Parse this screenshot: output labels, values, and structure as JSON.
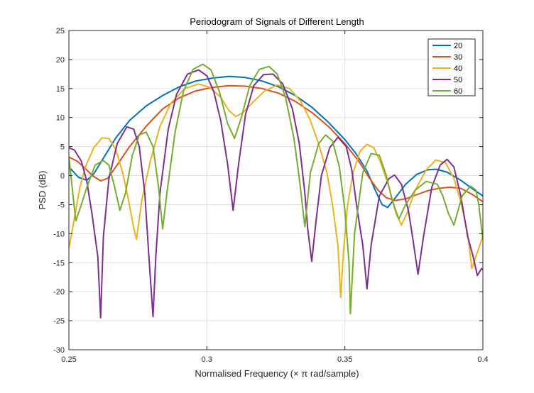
{
  "chart_data": {
    "type": "line",
    "title": "Periodogram of Signals of Different Length",
    "xlabel": "Normalised Frequency (× π rad/sample)",
    "ylabel": "PSD (dB)",
    "xlim": [
      0.25,
      0.4
    ],
    "ylim": [
      -30,
      25
    ],
    "xticks": [
      0.25,
      0.3,
      0.35,
      0.4
    ],
    "xtick_labels": [
      "0.25",
      "0.3",
      "0.35",
      "0.4"
    ],
    "yticks": [
      -30,
      -25,
      -20,
      -15,
      -10,
      -5,
      0,
      5,
      10,
      15,
      20,
      25
    ],
    "ytick_labels": [
      "-30",
      "-25",
      "-20",
      "-15",
      "-10",
      "-5",
      "0",
      "5",
      "10",
      "15",
      "20",
      "25"
    ],
    "grid": true,
    "legend_position": "top-right",
    "series": [
      {
        "name": "20",
        "color": "#0072BD",
        "points": [
          [
            0.25,
            1.5
          ],
          [
            0.2535,
            -0.3
          ],
          [
            0.2565,
            -0.8
          ],
          [
            0.259,
            0.3
          ],
          [
            0.2625,
            3.0
          ],
          [
            0.267,
            6.5
          ],
          [
            0.272,
            9.5
          ],
          [
            0.278,
            12.0
          ],
          [
            0.284,
            13.8
          ],
          [
            0.29,
            15.3
          ],
          [
            0.296,
            16.3
          ],
          [
            0.302,
            16.8
          ],
          [
            0.308,
            17.1
          ],
          [
            0.314,
            16.9
          ],
          [
            0.32,
            16.3
          ],
          [
            0.326,
            15.3
          ],
          [
            0.332,
            13.8
          ],
          [
            0.338,
            11.8
          ],
          [
            0.344,
            9.2
          ],
          [
            0.35,
            6.2
          ],
          [
            0.354,
            3.8
          ],
          [
            0.358,
            0.8
          ],
          [
            0.361,
            -2.5
          ],
          [
            0.3635,
            -5.0
          ],
          [
            0.3655,
            -5.5
          ],
          [
            0.368,
            -4.0
          ],
          [
            0.372,
            -1.5
          ],
          [
            0.376,
            0.2
          ],
          [
            0.38,
            1.0
          ],
          [
            0.383,
            1.1
          ],
          [
            0.387,
            0.6
          ],
          [
            0.392,
            -0.8
          ],
          [
            0.396,
            -2.2
          ],
          [
            0.4,
            -3.5
          ]
        ]
      },
      {
        "name": "30",
        "color": "#D95319",
        "points": [
          [
            0.25,
            3.2
          ],
          [
            0.253,
            2.5
          ],
          [
            0.256,
            1.2
          ],
          [
            0.2585,
            0.0
          ],
          [
            0.2615,
            -0.9
          ],
          [
            0.264,
            -0.5
          ],
          [
            0.267,
            1.5
          ],
          [
            0.272,
            5.0
          ],
          [
            0.278,
            8.5
          ],
          [
            0.284,
            11.5
          ],
          [
            0.29,
            13.4
          ],
          [
            0.296,
            14.6
          ],
          [
            0.302,
            15.2
          ],
          [
            0.308,
            15.5
          ],
          [
            0.314,
            15.4
          ],
          [
            0.32,
            15.0
          ],
          [
            0.326,
            14.2
          ],
          [
            0.332,
            12.8
          ],
          [
            0.338,
            10.9
          ],
          [
            0.344,
            8.5
          ],
          [
            0.35,
            5.5
          ],
          [
            0.355,
            2.5
          ],
          [
            0.359,
            -0.5
          ],
          [
            0.362,
            -2.5
          ],
          [
            0.365,
            -3.8
          ],
          [
            0.368,
            -4.3
          ],
          [
            0.372,
            -4.0
          ],
          [
            0.376,
            -3.3
          ],
          [
            0.38,
            -2.6
          ],
          [
            0.384,
            -2.2
          ],
          [
            0.388,
            -2.0
          ],
          [
            0.392,
            -2.2
          ],
          [
            0.396,
            -3.2
          ],
          [
            0.4,
            -4.5
          ]
        ]
      },
      {
        "name": "40",
        "color": "#EDB120",
        "points": [
          [
            0.25,
            -12.5
          ],
          [
            0.251,
            -10.0
          ],
          [
            0.2525,
            -6.0
          ],
          [
            0.254,
            -2.0
          ],
          [
            0.256,
            1.5
          ],
          [
            0.259,
            4.8
          ],
          [
            0.262,
            6.5
          ],
          [
            0.2645,
            6.4
          ],
          [
            0.267,
            4.5
          ],
          [
            0.2695,
            0.5
          ],
          [
            0.2715,
            -4.0
          ],
          [
            0.2735,
            -9.0
          ],
          [
            0.2745,
            -11.0
          ],
          [
            0.2765,
            -4.0
          ],
          [
            0.2795,
            2.5
          ],
          [
            0.283,
            8.5
          ],
          [
            0.287,
            12.5
          ],
          [
            0.292,
            15.0
          ],
          [
            0.297,
            15.8
          ],
          [
            0.301,
            15.2
          ],
          [
            0.305,
            13.5
          ],
          [
            0.308,
            11.2
          ],
          [
            0.3105,
            10.2
          ],
          [
            0.313,
            10.8
          ],
          [
            0.317,
            12.8
          ],
          [
            0.321,
            14.6
          ],
          [
            0.3255,
            15.6
          ],
          [
            0.33,
            15.0
          ],
          [
            0.334,
            12.8
          ],
          [
            0.3375,
            9.5
          ],
          [
            0.3405,
            5.5
          ],
          [
            0.3435,
            0.5
          ],
          [
            0.3455,
            -5.0
          ],
          [
            0.3475,
            -12.0
          ],
          [
            0.3485,
            -21.0
          ],
          [
            0.3495,
            -13.0
          ],
          [
            0.351,
            -5.0
          ],
          [
            0.353,
            0.5
          ],
          [
            0.3555,
            4.2
          ],
          [
            0.358,
            5.4
          ],
          [
            0.3605,
            4.8
          ],
          [
            0.363,
            2.2
          ],
          [
            0.366,
            -2.0
          ],
          [
            0.3685,
            -6.5
          ],
          [
            0.3705,
            -8.5
          ],
          [
            0.3725,
            -6.5
          ],
          [
            0.3755,
            -2.5
          ],
          [
            0.3795,
            1.0
          ],
          [
            0.383,
            2.7
          ],
          [
            0.3865,
            2.2
          ],
          [
            0.3895,
            -0.5
          ],
          [
            0.392,
            -4.5
          ],
          [
            0.3945,
            -10.0
          ],
          [
            0.396,
            -16.0
          ],
          [
            0.3985,
            -12.5
          ],
          [
            0.4,
            -10.5
          ]
        ]
      },
      {
        "name": "50",
        "color": "#7E2F8E",
        "points": [
          [
            0.25,
            4.8
          ],
          [
            0.252,
            4.4
          ],
          [
            0.2545,
            2.5
          ],
          [
            0.2565,
            -1.0
          ],
          [
            0.2585,
            -7.0
          ],
          [
            0.2605,
            -14.0
          ],
          [
            0.2615,
            -24.5
          ],
          [
            0.2625,
            -10.5
          ],
          [
            0.2645,
            -0.5
          ],
          [
            0.2675,
            5.5
          ],
          [
            0.271,
            8.4
          ],
          [
            0.2735,
            8.0
          ],
          [
            0.2755,
            5.0
          ],
          [
            0.2775,
            -3.0
          ],
          [
            0.279,
            -14.0
          ],
          [
            0.2805,
            -24.3
          ],
          [
            0.2815,
            -14.0
          ],
          [
            0.283,
            -3.0
          ],
          [
            0.286,
            8.0
          ],
          [
            0.289,
            14.0
          ],
          [
            0.293,
            17.5
          ],
          [
            0.297,
            18.2
          ],
          [
            0.3,
            17.2
          ],
          [
            0.3025,
            14.5
          ],
          [
            0.305,
            9.5
          ],
          [
            0.3075,
            2.0
          ],
          [
            0.3095,
            -6.0
          ],
          [
            0.3115,
            2.0
          ],
          [
            0.314,
            10.5
          ],
          [
            0.317,
            15.5
          ],
          [
            0.3205,
            17.4
          ],
          [
            0.324,
            17.5
          ],
          [
            0.3275,
            15.8
          ],
          [
            0.331,
            11.5
          ],
          [
            0.3335,
            5.5
          ],
          [
            0.3355,
            -3.0
          ],
          [
            0.3365,
            -9.0
          ],
          [
            0.338,
            -14.8
          ],
          [
            0.3395,
            -8.0
          ],
          [
            0.3415,
            0.0
          ],
          [
            0.3445,
            4.8
          ],
          [
            0.3475,
            6.6
          ],
          [
            0.3505,
            5.0
          ],
          [
            0.3525,
            1.0
          ],
          [
            0.3545,
            -6.0
          ],
          [
            0.3565,
            -12.0
          ],
          [
            0.358,
            -19.5
          ],
          [
            0.3595,
            -12.0
          ],
          [
            0.3625,
            -3.5
          ],
          [
            0.366,
            -0.5
          ],
          [
            0.368,
            0.1
          ],
          [
            0.3705,
            -1.5
          ],
          [
            0.373,
            -6.0
          ],
          [
            0.3745,
            -10.5
          ],
          [
            0.3765,
            -17.0
          ],
          [
            0.3785,
            -10.5
          ],
          [
            0.3815,
            -2.0
          ],
          [
            0.3845,
            1.8
          ],
          [
            0.387,
            2.8
          ],
          [
            0.3895,
            1.5
          ],
          [
            0.392,
            -3.5
          ],
          [
            0.3945,
            -10.5
          ],
          [
            0.3965,
            -14.0
          ],
          [
            0.398,
            -17.2
          ],
          [
            0.3995,
            -16.0
          ],
          [
            0.4,
            -16.2
          ]
        ]
      },
      {
        "name": "60",
        "color": "#77AC30",
        "points": [
          [
            0.25,
            3.2
          ],
          [
            0.2525,
            -7.8
          ],
          [
            0.2545,
            -5.0
          ],
          [
            0.2565,
            -2.0
          ],
          [
            0.2595,
            1.8
          ],
          [
            0.2625,
            2.6
          ],
          [
            0.2645,
            1.8
          ],
          [
            0.2665,
            -1.8
          ],
          [
            0.2685,
            -6.0
          ],
          [
            0.2705,
            -3.0
          ],
          [
            0.273,
            3.5
          ],
          [
            0.2755,
            7.0
          ],
          [
            0.278,
            7.5
          ],
          [
            0.2805,
            5.0
          ],
          [
            0.2825,
            -2.0
          ],
          [
            0.284,
            -9.2
          ],
          [
            0.2855,
            -3.0
          ],
          [
            0.2885,
            7.5
          ],
          [
            0.2915,
            14.5
          ],
          [
            0.295,
            18.3
          ],
          [
            0.2985,
            19.2
          ],
          [
            0.3015,
            18.2
          ],
          [
            0.3045,
            14.5
          ],
          [
            0.3075,
            9.0
          ],
          [
            0.31,
            6.4
          ],
          [
            0.3125,
            10.0
          ],
          [
            0.3155,
            15.5
          ],
          [
            0.319,
            18.3
          ],
          [
            0.3225,
            18.8
          ],
          [
            0.3255,
            17.5
          ],
          [
            0.3285,
            13.5
          ],
          [
            0.3315,
            6.5
          ],
          [
            0.3335,
            -0.5
          ],
          [
            0.3355,
            -8.8
          ],
          [
            0.3375,
            0.5
          ],
          [
            0.3405,
            5.5
          ],
          [
            0.343,
            7.0
          ],
          [
            0.3455,
            6.0
          ],
          [
            0.348,
            1.5
          ],
          [
            0.35,
            -6.0
          ],
          [
            0.3515,
            -15.0
          ],
          [
            0.352,
            -23.8
          ],
          [
            0.3535,
            -10.0
          ],
          [
            0.3565,
            0.5
          ],
          [
            0.3595,
            3.8
          ],
          [
            0.3625,
            3.5
          ],
          [
            0.365,
            0.0
          ],
          [
            0.367,
            -4.0
          ],
          [
            0.3695,
            -7.5
          ],
          [
            0.372,
            -5.0
          ],
          [
            0.3755,
            -2.5
          ],
          [
            0.3795,
            -1.0
          ],
          [
            0.3835,
            -1.5
          ],
          [
            0.3855,
            -3.5
          ],
          [
            0.3875,
            -6.5
          ],
          [
            0.3895,
            -8.5
          ],
          [
            0.3925,
            -3.5
          ],
          [
            0.3955,
            -1.8
          ],
          [
            0.3975,
            -2.5
          ],
          [
            0.3985,
            -5.0
          ],
          [
            0.3995,
            -9.0
          ],
          [
            0.4,
            -11.0
          ]
        ]
      }
    ]
  }
}
